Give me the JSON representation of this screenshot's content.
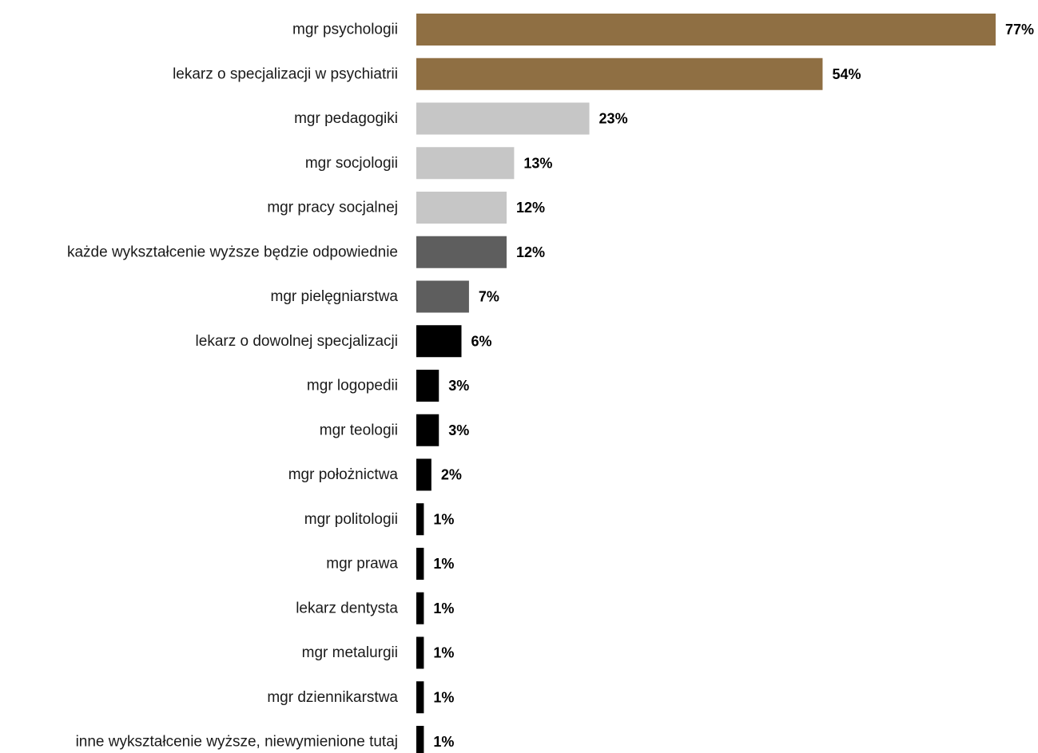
{
  "chart_data": {
    "type": "bar",
    "orientation": "horizontal",
    "title": "",
    "xlabel": "",
    "ylabel": "",
    "value_suffix": "%",
    "xlim": [
      0,
      77
    ],
    "grid": false,
    "legend": "none",
    "categories": [
      "mgr psychologii",
      "lekarz o specjalizacji w psychiatrii",
      "mgr pedagogiki",
      "mgr socjologii",
      "mgr pracy socjalnej",
      "każde wykształcenie wyższe będzie odpowiednie",
      "mgr pielęgniarstwa",
      "lekarz o dowolnej specjalizacji",
      "mgr logopedii",
      "mgr teologii",
      "mgr położnictwa",
      "mgr politologii",
      "mgr prawa",
      "lekarz dentysta",
      "mgr metalurgii",
      "mgr dziennikarstwa",
      "inne wykształcenie wyższe, niewymienione tutaj"
    ],
    "values": [
      77,
      54,
      23,
      13,
      12,
      12,
      7,
      6,
      3,
      3,
      2,
      1,
      1,
      1,
      1,
      1,
      1
    ],
    "value_labels": [
      "77%",
      "54%",
      "23%",
      "13%",
      "12%",
      "12%",
      "7%",
      "6%",
      "3%",
      "3%",
      "2%",
      "1%",
      "1%",
      "1%",
      "1%",
      "1%",
      "1%"
    ],
    "colors": [
      "#8f6f43",
      "#8f6f43",
      "#c6c6c6",
      "#c6c6c6",
      "#c6c6c6",
      "#5e5e5e",
      "#5e5e5e",
      "#000000",
      "#000000",
      "#000000",
      "#000000",
      "#000000",
      "#000000",
      "#000000",
      "#000000",
      "#000000",
      "#000000"
    ]
  }
}
